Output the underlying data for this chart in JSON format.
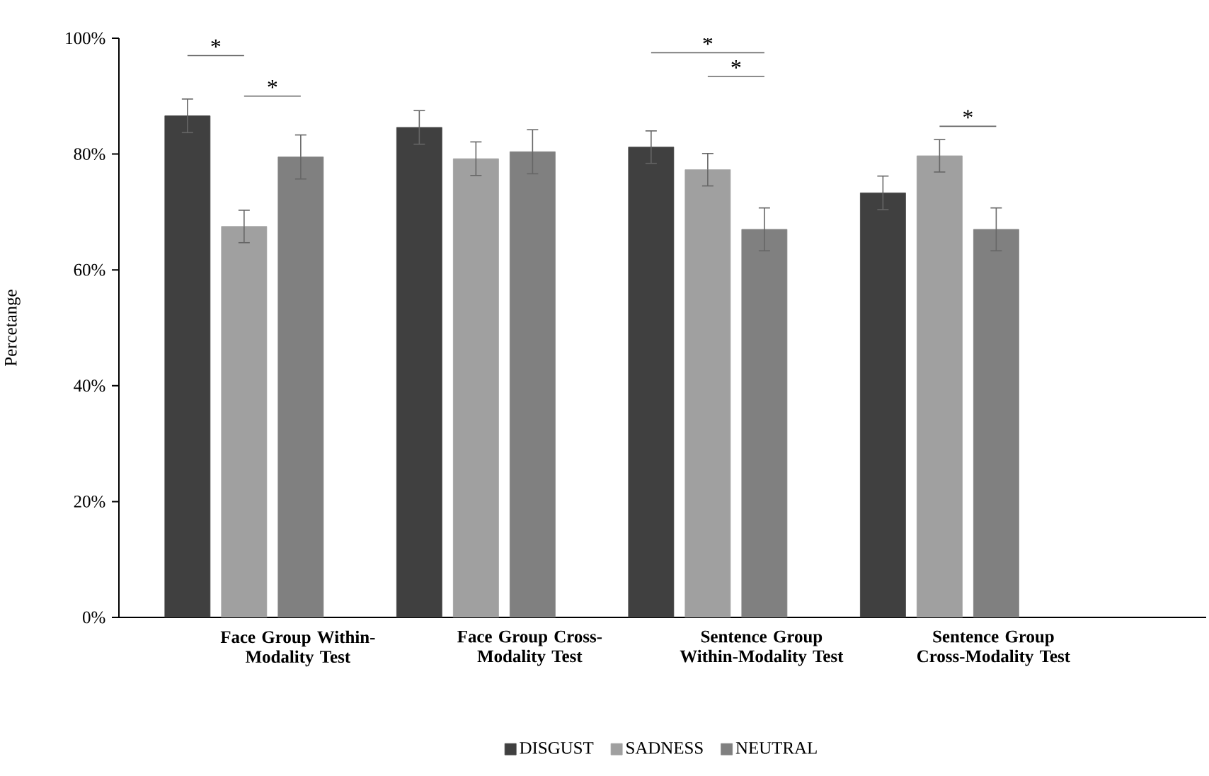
{
  "chart_data": {
    "type": "bar",
    "ylabel": "Percetange",
    "categories": [
      "Face Group Within-Modality Test",
      "Face Group Cross-Modality Test",
      "Sentence Group Within-Modality Test",
      "Sentence Group Cross-Modality Test"
    ],
    "series": [
      {
        "name": "DISGUST",
        "color": "#404040",
        "values": [
          86.6,
          84.6,
          81.2,
          73.3
        ],
        "errors": [
          2.9,
          2.9,
          2.8,
          2.9
        ]
      },
      {
        "name": "SADNESS",
        "color": "#a0a0a0",
        "values": [
          67.5,
          79.2,
          77.3,
          79.7
        ],
        "errors": [
          2.8,
          2.9,
          2.8,
          2.8
        ]
      },
      {
        "name": "NEUTRAL",
        "color": "#808080",
        "values": [
          79.5,
          80.4,
          67.0,
          67.0
        ],
        "errors": [
          3.8,
          3.8,
          3.7,
          3.7
        ]
      }
    ],
    "ylim": [
      0,
      100
    ],
    "yticks": [
      {
        "value": 0,
        "label": "0%"
      },
      {
        "value": 20,
        "label": "20%"
      },
      {
        "value": 40,
        "label": "40%"
      },
      {
        "value": 60,
        "label": "60%"
      },
      {
        "value": 80,
        "label": "80%"
      },
      {
        "value": 100,
        "label": "100%"
      }
    ],
    "grid": false,
    "legend": "bottom",
    "annotations": [
      "*",
      "*",
      "*",
      "*",
      "*"
    ]
  }
}
